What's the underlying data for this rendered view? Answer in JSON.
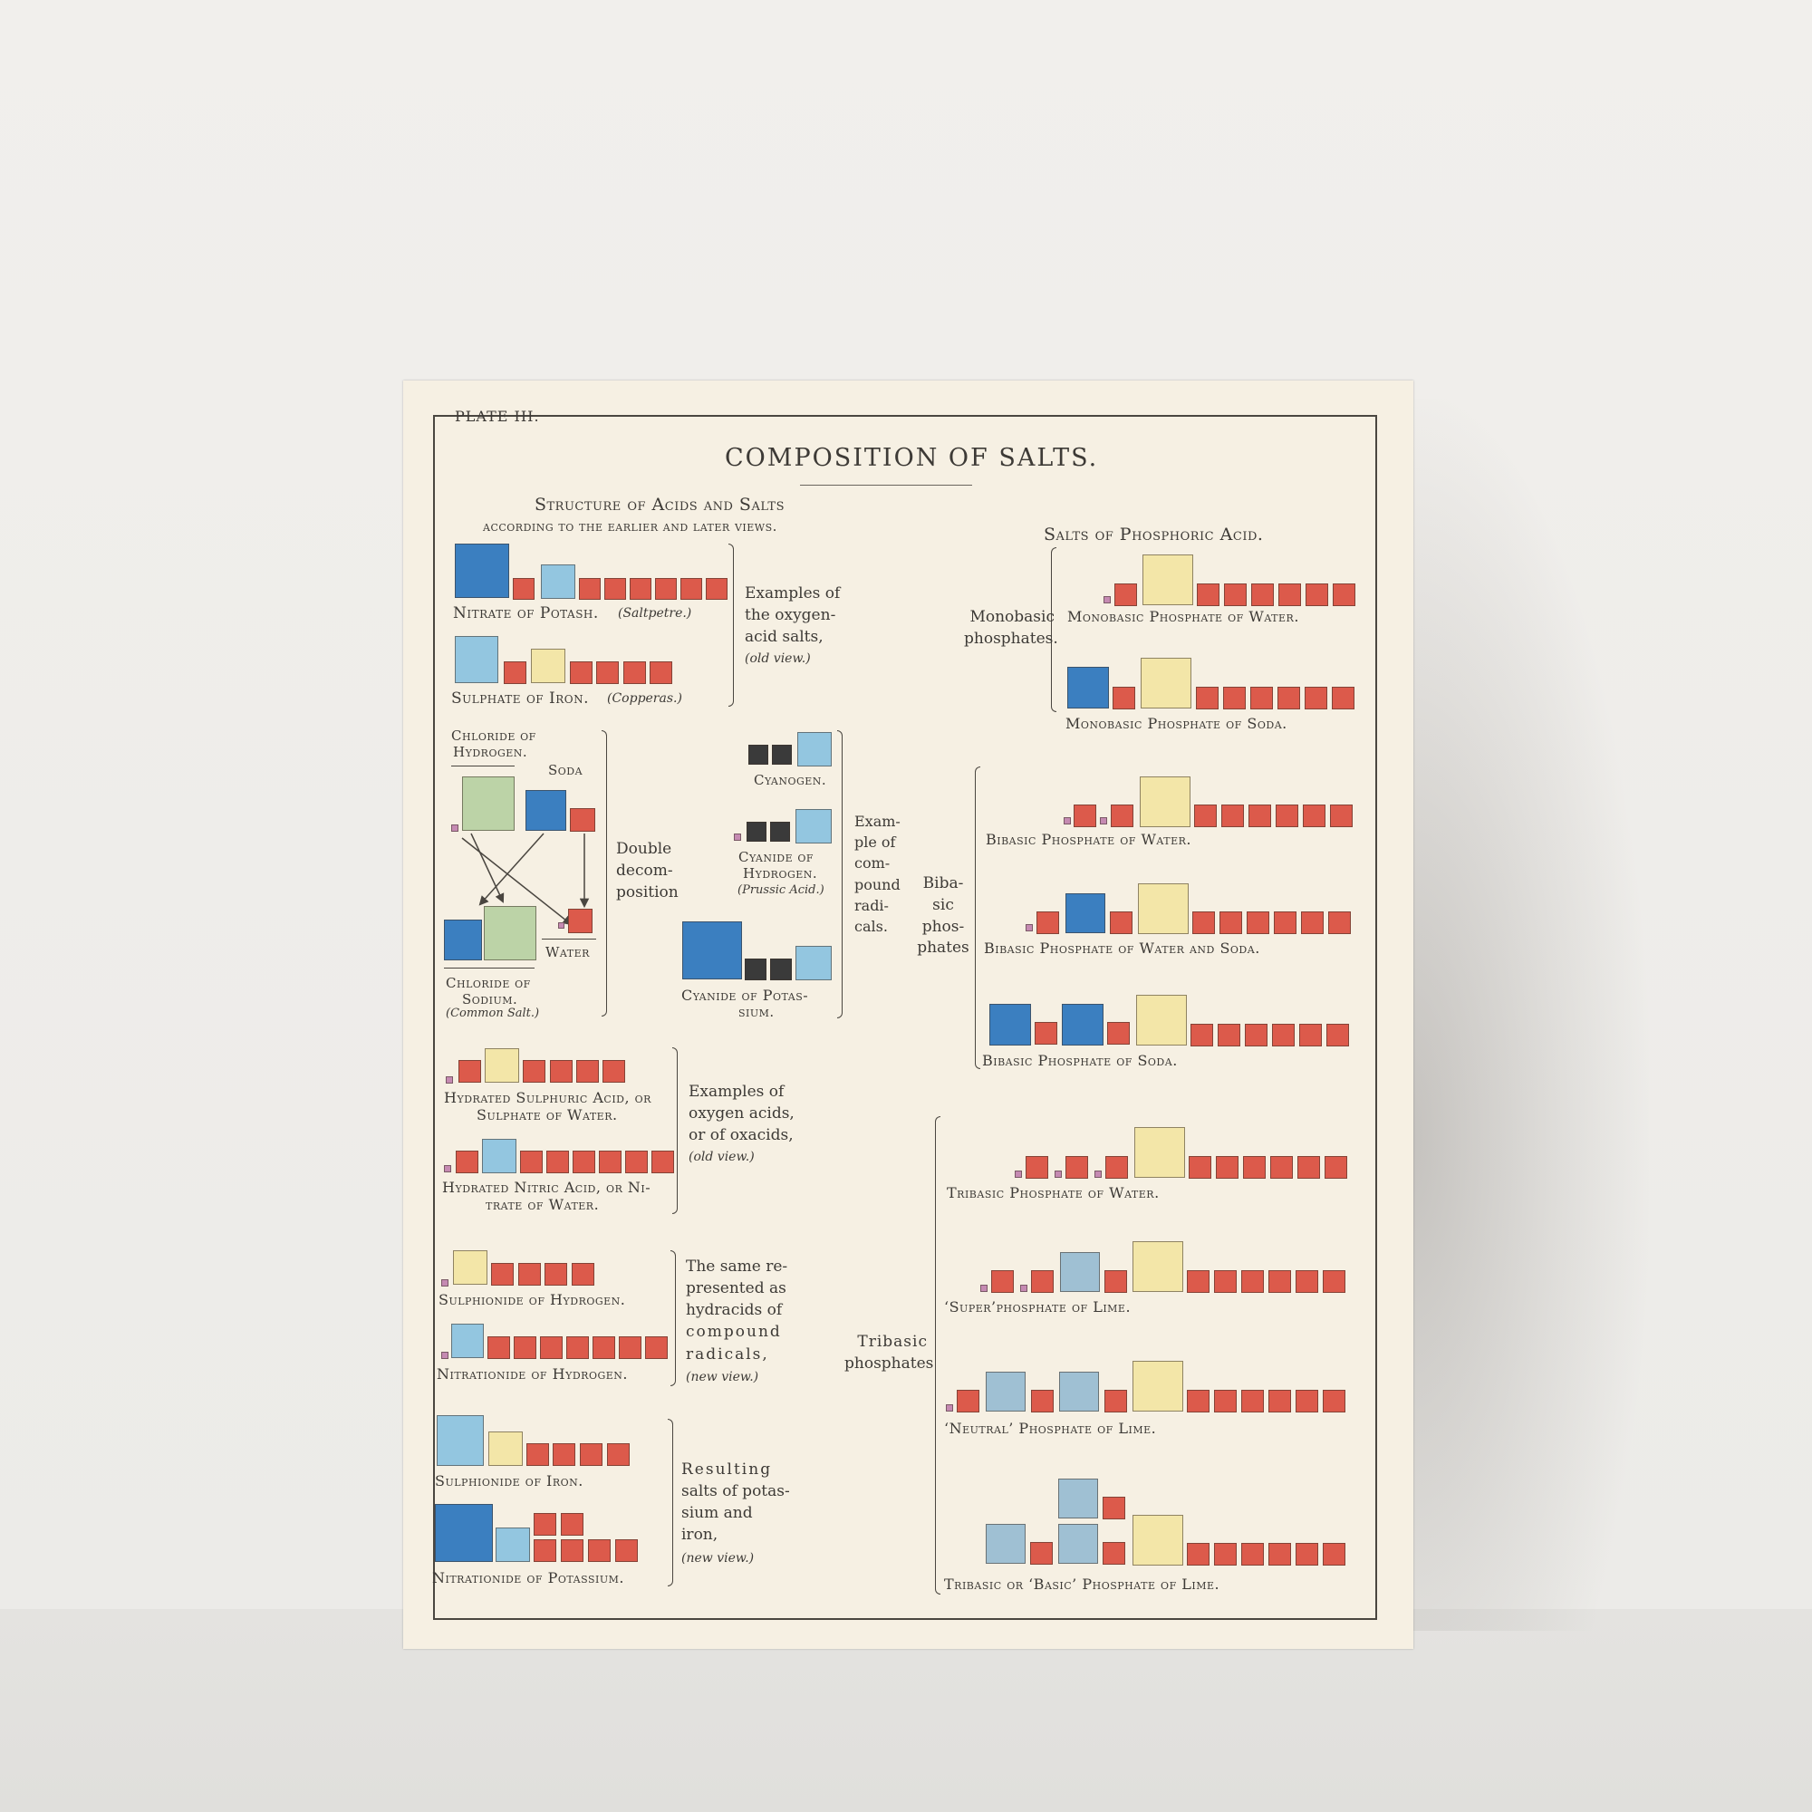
{
  "plate_label": "PLATE III.",
  "title": "COMPOSITION OF SALTS.",
  "left_header": {
    "line1": "Structure of Acids and Salts",
    "line2": "according to the earlier and later views."
  },
  "right_header": "Salts of Phosphoric Acid.",
  "labels": {
    "nitrate_of_potash": "Nitrate of Potash.",
    "saltpetre": "(Saltpetre.)",
    "sulphate_of_iron": "Sulphate of Iron.",
    "copperas": "(Copperas.)",
    "oxygen_acid_note": [
      "Examples of",
      "the oxygen-",
      "acid salts,"
    ],
    "old_view": "(old view.)",
    "chloride_hydrogen": [
      "Chloride of",
      "Hydrogen."
    ],
    "soda": "Soda",
    "double_decomposition": [
      "Double",
      "decom-",
      "position"
    ],
    "water": "Water",
    "chloride_sodium": [
      "Chloride of",
      "Sodium."
    ],
    "common_salt": "(Common Salt.)",
    "cyanogen": "Cyanogen.",
    "cyanide_hydrogen": [
      "Cyanide of",
      "Hydrogen."
    ],
    "prussic_acid": "(Prussic Acid.)",
    "cyanide_potassium": [
      "Cyanide of Potas-",
      "sium."
    ],
    "compound_radicals_note": [
      "Exam-",
      "ple of",
      "com-",
      "pound",
      "radi-",
      "cals."
    ],
    "hydrated_sulphuric": [
      "Hydrated Sulphuric Acid, or",
      "Sulphate of Water."
    ],
    "hydrated_nitric": [
      "Hydrated Nitric Acid, or Ni-",
      "trate of Water."
    ],
    "oxygen_acids_note": [
      "Examples of",
      "oxygen acids,",
      "or of oxacids,"
    ],
    "old_view_2": "(old view.)",
    "sulphionide_hydrogen": "Sulphionide of Hydrogen.",
    "nitrationide_hydrogen": "Nitrationide of Hydrogen.",
    "hydracids_note": [
      "The same re-",
      "presented as",
      "hydracids of",
      "compound",
      "radicals,"
    ],
    "new_view": "(new view.)",
    "sulphionide_iron": "Sulphionide of Iron.",
    "nitrationide_potassium": "Nitrationide of Potassium.",
    "resulting_note": [
      "Resulting",
      "salts of potas-",
      "sium and iron,"
    ],
    "new_view_2": "(new view.)",
    "monobasic": [
      "Monobasic",
      "phosphates."
    ],
    "monobasic_water": "Monobasic Phosphate of Water.",
    "monobasic_soda": "Monobasic Phosphate of Soda.",
    "bibasic": [
      "Biba-",
      "sic",
      "phos-",
      "phates"
    ],
    "bibasic_water": "Bibasic Phosphate of Water.",
    "bibasic_water_soda": "Bibasic Phosphate of Water and Soda.",
    "bibasic_soda": "Bibasic Phosphate of Soda.",
    "tribasic": [
      "Tribasic",
      "phosphates"
    ],
    "tribasic_water": "Tribasic Phosphate of Water.",
    "superphosphate_lime": "‘Super’phosphate of Lime.",
    "neutral_lime": "‘Neutral’ Phosphate of Lime.",
    "basic_lime": "Tribasic or ‘Basic’ Phosphate of Lime."
  },
  "colors": {
    "paper": "#f6f0e3",
    "red": "#dc5a4b",
    "dark_blue": "#3b7fc0",
    "light_blue": "#93c6e0",
    "yellow": "#f3e6a8",
    "green": "#bcd3a7",
    "black": "#3a3a3a",
    "pink": "#c58ab2",
    "grey_blue": "#9fc0d3"
  }
}
